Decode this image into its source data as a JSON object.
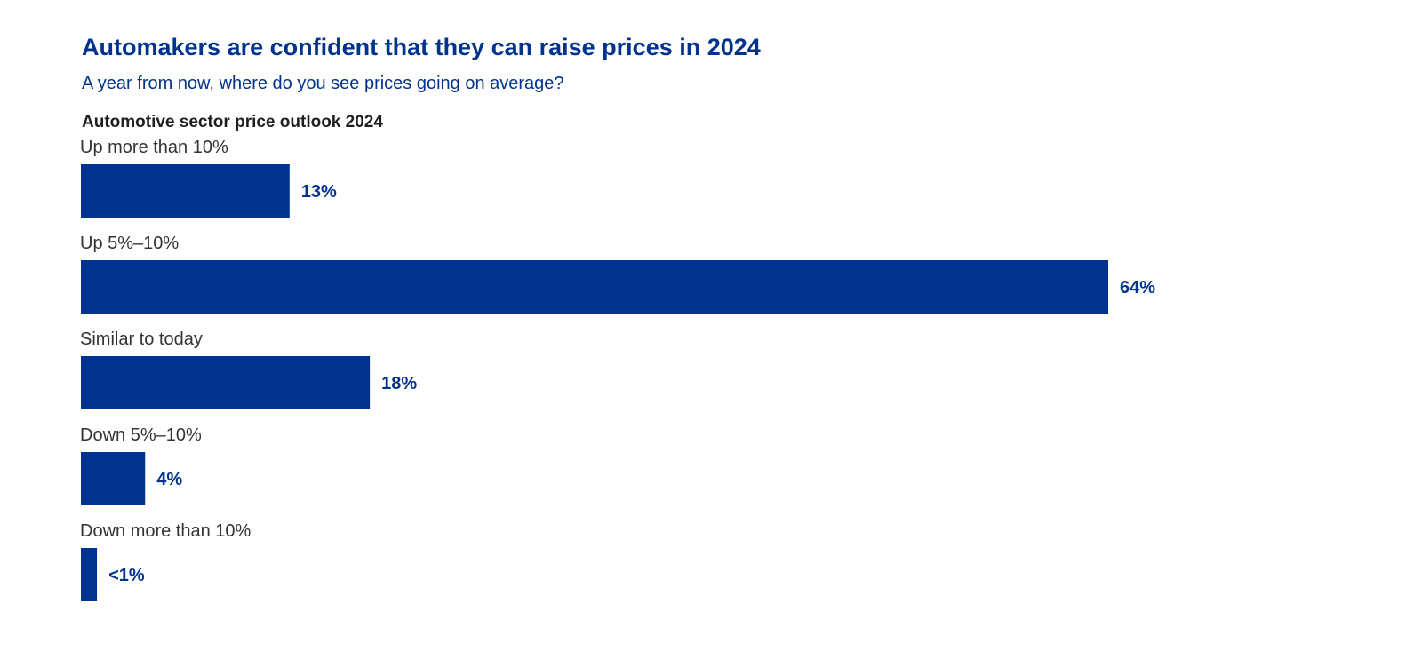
{
  "chart_data": {
    "type": "bar",
    "orientation": "horizontal",
    "title": "Automakers are confident that they can raise prices in 2024",
    "subtitle": "A year from now, where do you see prices going on average?",
    "chart_heading": "Automotive sector price outlook 2024",
    "categories": [
      "Up more than 10%",
      "Up 5%–10%",
      "Similar to today",
      "Down 5%–10%",
      "Down more than 10%"
    ],
    "values": [
      13,
      64,
      18,
      4,
      1
    ],
    "value_labels": [
      "13%",
      "64%",
      "18%",
      "4%",
      "<1%"
    ],
    "xlim": [
      0,
      64
    ],
    "grid": false,
    "legend": "none",
    "colors": {
      "bar": "#00338D",
      "title": "#00338D",
      "value_label": "#00338D"
    }
  }
}
